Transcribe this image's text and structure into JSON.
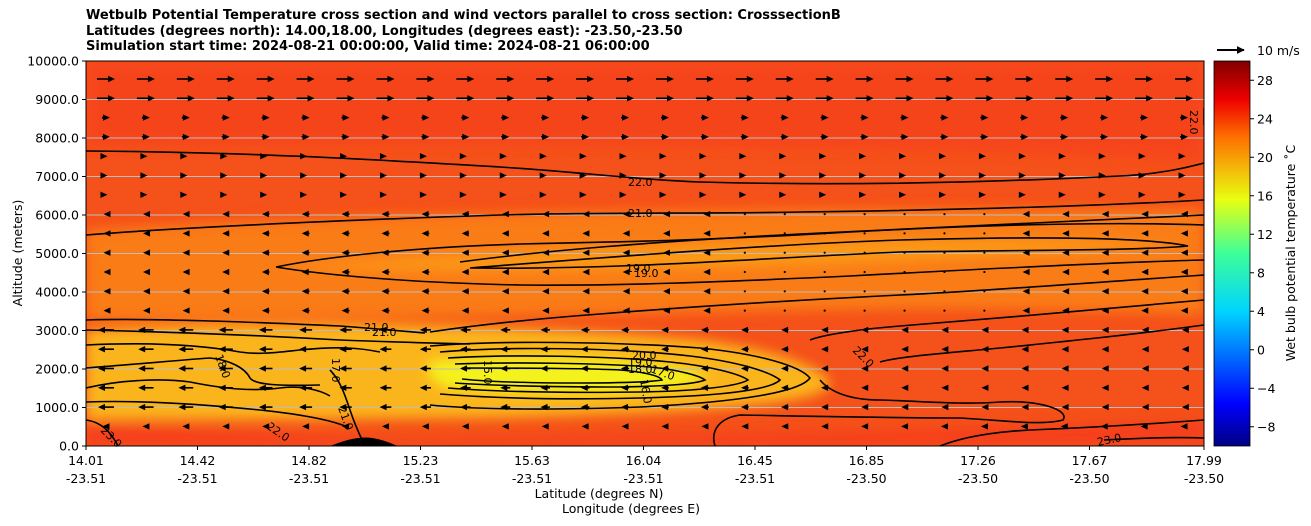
{
  "chart_data": {
    "type": "heatmap",
    "title_lines": [
      "Wetbulb Potential Temperature cross section and wind vectors parallel to cross section: CrosssectionB",
      "Latitudes (degrees north): 14.00,18.00, Longitudes (degrees east): -23.50,-23.50",
      "Simulation start time: 2024-08-21 00:00:00, Valid time: 2024-08-21 06:00:00"
    ],
    "xlabel": "Latitude (degrees N)",
    "xlabel2": "Longitude (degrees E)",
    "ylabel": "Altitude (meters)",
    "colorbar_label": "Wet bulb potential temperature $^\\circ$C",
    "colorbar_label_text": "Wet bulb potential temperature ˚C",
    "colorbar_ticks": [
      "28",
      "24",
      "20",
      "16",
      "12",
      "8",
      "4",
      "0",
      "−4",
      "−8"
    ],
    "colorbar_range": [
      -10,
      30
    ],
    "quiver_key": "10 m/s",
    "x_ticks": [
      {
        "lat": "14.01",
        "lon": "-23.51"
      },
      {
        "lat": "14.42",
        "lon": "-23.51"
      },
      {
        "lat": "14.82",
        "lon": "-23.51"
      },
      {
        "lat": "15.23",
        "lon": "-23.51"
      },
      {
        "lat": "15.63",
        "lon": "-23.51"
      },
      {
        "lat": "16.04",
        "lon": "-23.51"
      },
      {
        "lat": "16.45",
        "lon": "-23.51"
      },
      {
        "lat": "16.85",
        "lon": "-23.50"
      },
      {
        "lat": "17.26",
        "lon": "-23.50"
      },
      {
        "lat": "17.67",
        "lon": "-23.50"
      },
      {
        "lat": "17.99",
        "lon": "-23.50"
      }
    ],
    "y_ticks": [
      "10000.0",
      "9000.0",
      "8000.0",
      "7000.0",
      "6000.0",
      "5000.0",
      "4000.0",
      "3000.0",
      "2000.0",
      "1000.0",
      "0.0"
    ],
    "ylim": [
      0,
      10000
    ],
    "grid": "horizontal",
    "contour_labels": [
      "22.0",
      "21.0",
      "19.0",
      "19.0",
      "21.0",
      "21.0",
      "18.0",
      "17.0",
      "20.0",
      "19.0",
      "18.0",
      "17.0",
      "16.0",
      "15.0",
      "22.0",
      "23.0",
      "22.0",
      "21.0",
      "23.0",
      "22.0"
    ]
  },
  "colors": {
    "background_field": "#f5511a",
    "warm_pocket": "#f73a1a",
    "mid_band": "#fa7a18",
    "moist_layer": "#fbc420",
    "moist_core": "#f2f51a",
    "contour": "#000000"
  }
}
